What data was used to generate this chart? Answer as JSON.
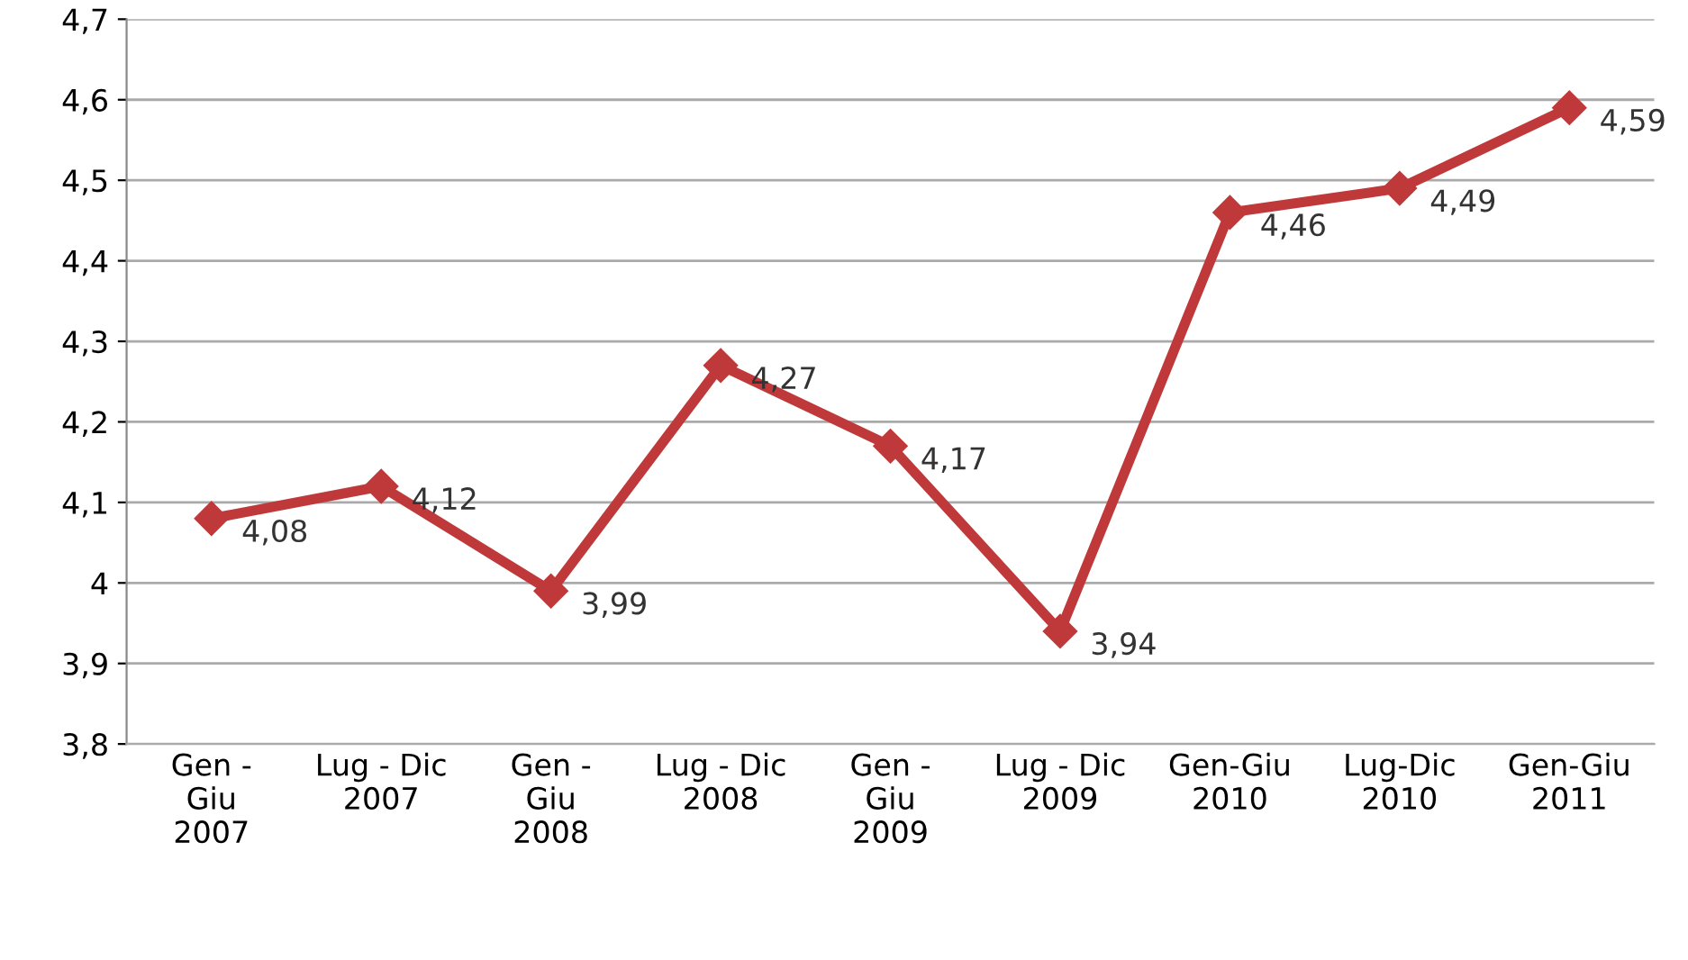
{
  "chart_data": {
    "type": "line",
    "categories": [
      "Gen -\nGiu\n2007",
      "Lug - Dic\n2007",
      "Gen -\nGiu\n2008",
      "Lug - Dic\n2008",
      "Gen -\nGiu\n2009",
      "Lug - Dic\n2009",
      "Gen-Giu\n2010",
      "Lug-Dic\n2010",
      "Gen-Giu\n2011"
    ],
    "series": [
      {
        "color": "#c0393a",
        "values": [
          4.08,
          4.12,
          3.99,
          4.27,
          4.17,
          3.94,
          4.46,
          4.49,
          4.59
        ],
        "value_labels": [
          "4,08",
          "4,12",
          "3,99",
          "4,27",
          "4,17",
          "3,94",
          "4,46",
          "4,49",
          "4,59"
        ]
      }
    ],
    "ylim": [
      3.8,
      4.7
    ],
    "yticks": [
      {
        "value": 3.8,
        "label": "3,8"
      },
      {
        "value": 3.9,
        "label": "3,9"
      },
      4,
      {
        "value": 4.1,
        "label": "4,1"
      },
      {
        "value": 4.2,
        "label": "4,2"
      },
      {
        "value": 4.3,
        "label": "4,3"
      },
      {
        "value": 4.4,
        "label": "4,4"
      },
      {
        "value": 4.5,
        "label": "4,5"
      },
      {
        "value": 4.6,
        "label": "4,6"
      },
      {
        "value": 4.7,
        "label": "4,7"
      }
    ],
    "grid": "y",
    "marker": "diamond",
    "line_style": "solid",
    "legend": false
  }
}
